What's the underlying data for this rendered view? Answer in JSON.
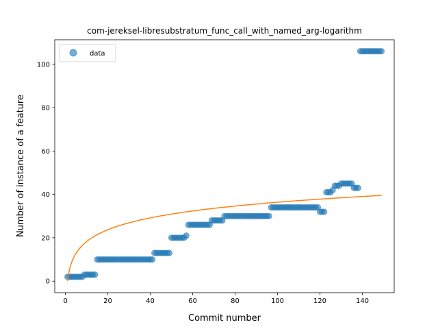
{
  "chart_data": {
    "type": "scatter",
    "title": "com-jereksel-libresubstratum_func_call_with_named_arg-logarithm",
    "xlabel": "Commit number",
    "ylabel": "Number of instance of a feature",
    "xlim": [
      -5,
      155
    ],
    "ylim": [
      -5.3,
      111.3
    ],
    "xticks": [
      0,
      20,
      40,
      60,
      80,
      100,
      120,
      140
    ],
    "yticks": [
      0,
      20,
      40,
      60,
      80,
      100
    ],
    "grid": false,
    "legend": {
      "position": "top-left",
      "entries": [
        "data"
      ]
    },
    "colors": {
      "data": "#1f77b4",
      "fit": "#ff7f0e"
    },
    "series": [
      {
        "name": "data",
        "kind": "scatter",
        "steps": [
          {
            "from": 1,
            "to": 8,
            "y": 2
          },
          {
            "from": 9,
            "to": 14,
            "y": 3
          },
          {
            "from": 15,
            "to": 41,
            "y": 10
          },
          {
            "from": 42,
            "to": 49,
            "y": 13
          },
          {
            "from": 50,
            "to": 56,
            "y": 20
          },
          {
            "from": 57,
            "to": 57,
            "y": 21
          },
          {
            "from": 58,
            "to": 68,
            "y": 26
          },
          {
            "from": 69,
            "to": 74,
            "y": 28
          },
          {
            "from": 75,
            "to": 96,
            "y": 30
          },
          {
            "from": 97,
            "to": 119,
            "y": 34
          },
          {
            "from": 120,
            "to": 122,
            "y": 32
          },
          {
            "from": 123,
            "to": 125,
            "y": 41
          },
          {
            "from": 126,
            "to": 126,
            "y": 42
          },
          {
            "from": 127,
            "to": 129,
            "y": 44
          },
          {
            "from": 130,
            "to": 135,
            "y": 45
          },
          {
            "from": 136,
            "to": 138,
            "y": 43
          },
          {
            "from": 139,
            "to": 149,
            "y": 106
          }
        ]
      },
      {
        "kind": "line",
        "model": "a + b*ln(x)",
        "a": 0.1,
        "b": 7.88,
        "x_range": [
          1,
          149
        ]
      }
    ]
  }
}
